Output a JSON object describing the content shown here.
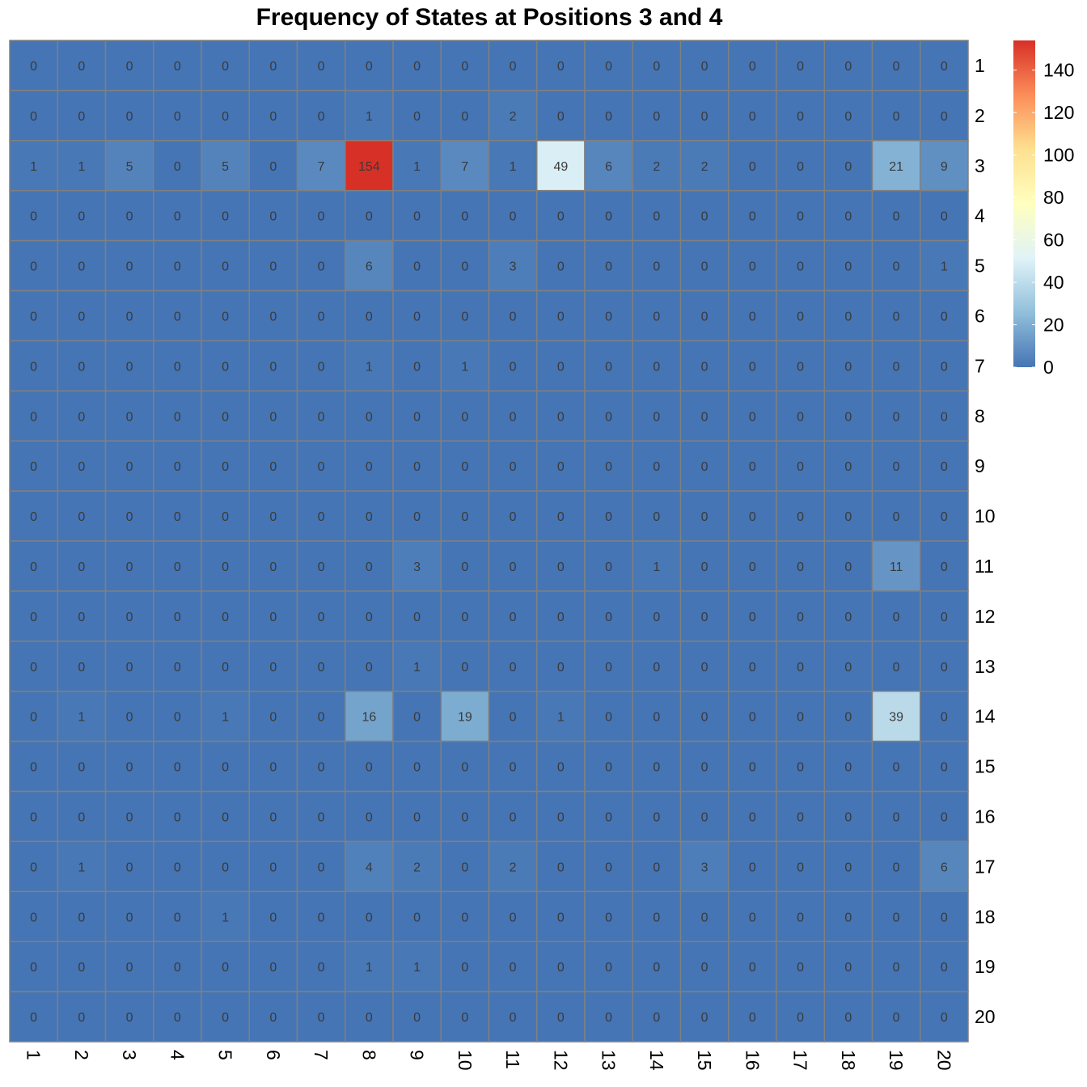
{
  "chart_data": {
    "type": "heatmap",
    "title": "Frequency of States at Positions 3 and 4",
    "row_labels": [
      "1",
      "2",
      "3",
      "4",
      "5",
      "6",
      "7",
      "8",
      "9",
      "10",
      "11",
      "12",
      "13",
      "14",
      "15",
      "16",
      "17",
      "18",
      "19",
      "20"
    ],
    "col_labels": [
      "1",
      "2",
      "3",
      "4",
      "5",
      "6",
      "7",
      "8",
      "9",
      "10",
      "11",
      "12",
      "13",
      "14",
      "15",
      "16",
      "17",
      "18",
      "19",
      "20"
    ],
    "values": [
      [
        0,
        0,
        0,
        0,
        0,
        0,
        0,
        0,
        0,
        0,
        0,
        0,
        0,
        0,
        0,
        0,
        0,
        0,
        0,
        0
      ],
      [
        0,
        0,
        0,
        0,
        0,
        0,
        0,
        1,
        0,
        0,
        2,
        0,
        0,
        0,
        0,
        0,
        0,
        0,
        0,
        0
      ],
      [
        1,
        1,
        5,
        0,
        5,
        0,
        7,
        154,
        1,
        7,
        1,
        49,
        6,
        2,
        2,
        0,
        0,
        0,
        21,
        9
      ],
      [
        0,
        0,
        0,
        0,
        0,
        0,
        0,
        0,
        0,
        0,
        0,
        0,
        0,
        0,
        0,
        0,
        0,
        0,
        0,
        0
      ],
      [
        0,
        0,
        0,
        0,
        0,
        0,
        0,
        6,
        0,
        0,
        3,
        0,
        0,
        0,
        0,
        0,
        0,
        0,
        0,
        1
      ],
      [
        0,
        0,
        0,
        0,
        0,
        0,
        0,
        0,
        0,
        0,
        0,
        0,
        0,
        0,
        0,
        0,
        0,
        0,
        0,
        0
      ],
      [
        0,
        0,
        0,
        0,
        0,
        0,
        0,
        1,
        0,
        1,
        0,
        0,
        0,
        0,
        0,
        0,
        0,
        0,
        0,
        0
      ],
      [
        0,
        0,
        0,
        0,
        0,
        0,
        0,
        0,
        0,
        0,
        0,
        0,
        0,
        0,
        0,
        0,
        0,
        0,
        0,
        0
      ],
      [
        0,
        0,
        0,
        0,
        0,
        0,
        0,
        0,
        0,
        0,
        0,
        0,
        0,
        0,
        0,
        0,
        0,
        0,
        0,
        0
      ],
      [
        0,
        0,
        0,
        0,
        0,
        0,
        0,
        0,
        0,
        0,
        0,
        0,
        0,
        0,
        0,
        0,
        0,
        0,
        0,
        0
      ],
      [
        0,
        0,
        0,
        0,
        0,
        0,
        0,
        0,
        3,
        0,
        0,
        0,
        0,
        1,
        0,
        0,
        0,
        0,
        11,
        0
      ],
      [
        0,
        0,
        0,
        0,
        0,
        0,
        0,
        0,
        0,
        0,
        0,
        0,
        0,
        0,
        0,
        0,
        0,
        0,
        0,
        0
      ],
      [
        0,
        0,
        0,
        0,
        0,
        0,
        0,
        0,
        1,
        0,
        0,
        0,
        0,
        0,
        0,
        0,
        0,
        0,
        0,
        0
      ],
      [
        0,
        1,
        0,
        0,
        1,
        0,
        0,
        16,
        0,
        19,
        0,
        1,
        0,
        0,
        0,
        0,
        0,
        0,
        39,
        0
      ],
      [
        0,
        0,
        0,
        0,
        0,
        0,
        0,
        0,
        0,
        0,
        0,
        0,
        0,
        0,
        0,
        0,
        0,
        0,
        0,
        0
      ],
      [
        0,
        0,
        0,
        0,
        0,
        0,
        0,
        0,
        0,
        0,
        0,
        0,
        0,
        0,
        0,
        0,
        0,
        0,
        0,
        0
      ],
      [
        0,
        1,
        0,
        0,
        0,
        0,
        0,
        4,
        2,
        0,
        2,
        0,
        0,
        0,
        3,
        0,
        0,
        0,
        0,
        6
      ],
      [
        0,
        0,
        0,
        0,
        1,
        0,
        0,
        0,
        0,
        0,
        0,
        0,
        0,
        0,
        0,
        0,
        0,
        0,
        0,
        0
      ],
      [
        0,
        0,
        0,
        0,
        0,
        0,
        0,
        1,
        1,
        0,
        0,
        0,
        0,
        0,
        0,
        0,
        0,
        0,
        0,
        0
      ],
      [
        0,
        0,
        0,
        0,
        0,
        0,
        0,
        0,
        0,
        0,
        0,
        0,
        0,
        0,
        0,
        0,
        0,
        0,
        0,
        0
      ]
    ],
    "color_scale": {
      "min": 0,
      "max": 154,
      "colors": [
        "#4575B4",
        "#91BFDB",
        "#E0F3F8",
        "#FFFFBF",
        "#FEE090",
        "#FC8D59",
        "#D73027"
      ],
      "ticks": [
        0,
        20,
        40,
        60,
        80,
        100,
        120,
        140
      ]
    },
    "cell_border_color": "#808080"
  }
}
